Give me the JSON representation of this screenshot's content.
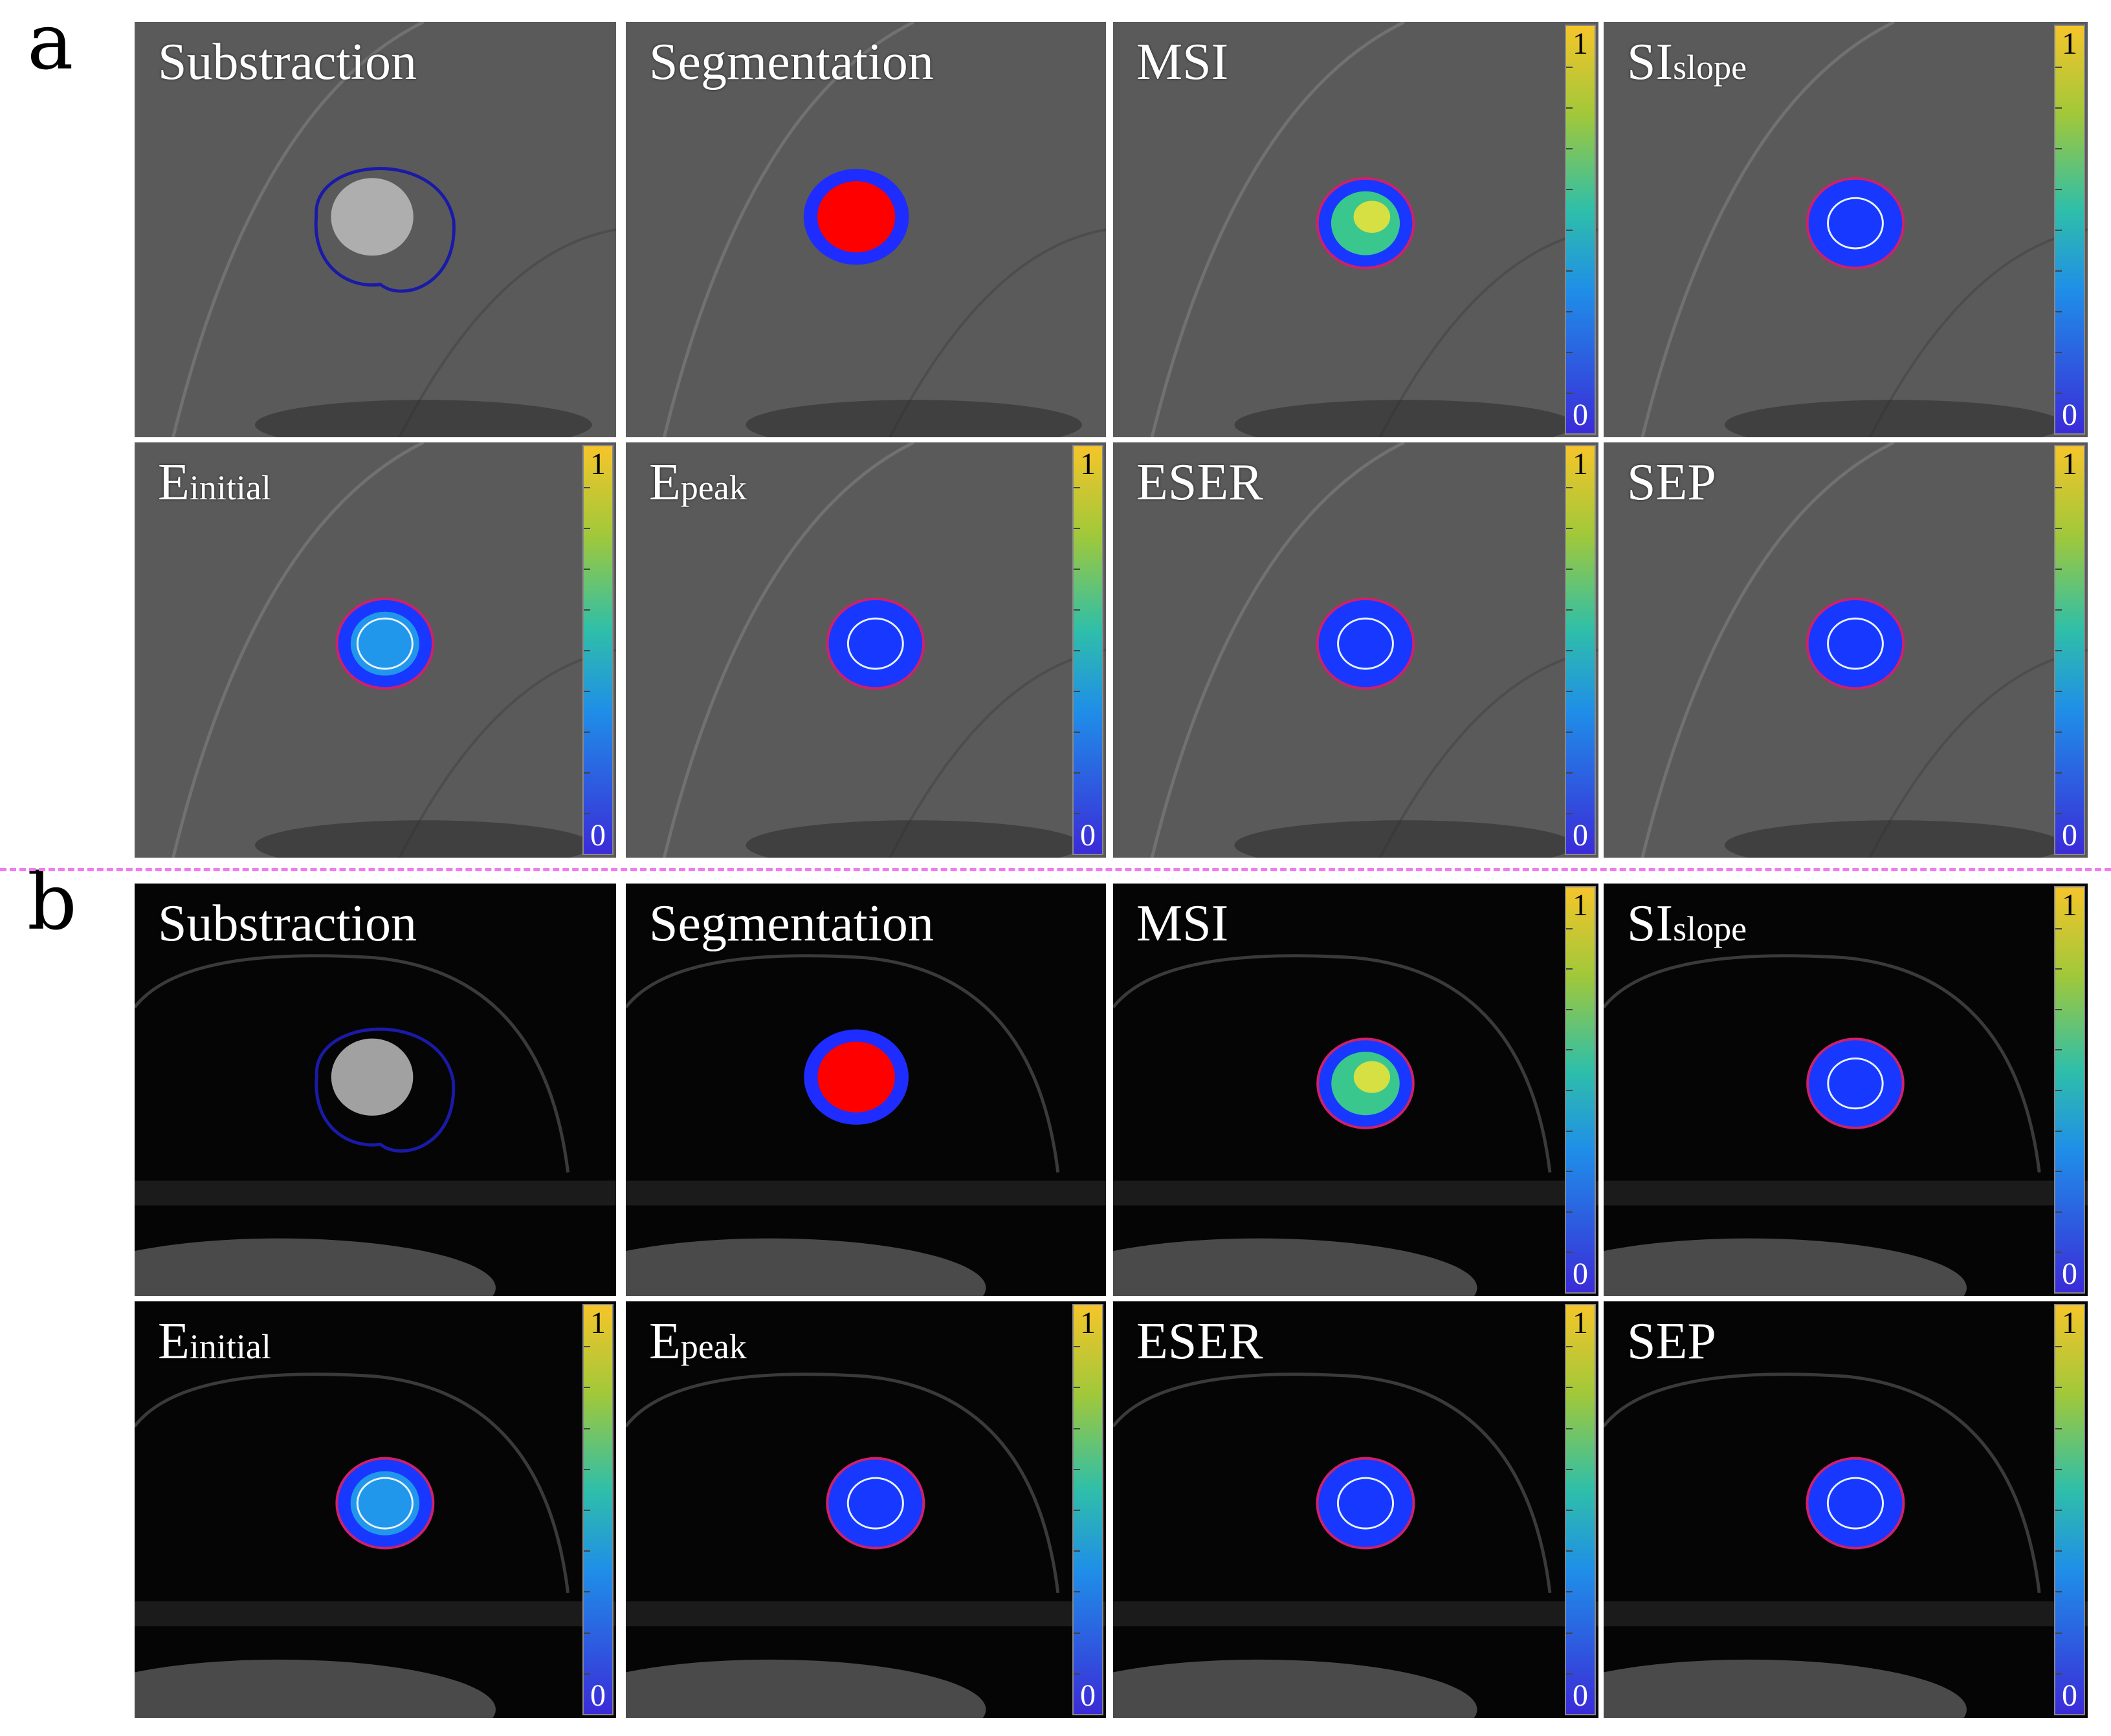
{
  "sections": [
    {
      "letter": "a",
      "panels": [
        {
          "title": "Substraction",
          "sub": "",
          "kind": "sub",
          "colorbar": false
        },
        {
          "title": "Segmentation",
          "sub": "",
          "kind": "seg",
          "colorbar": false
        },
        {
          "title": "MSI",
          "sub": "",
          "kind": "map-hot",
          "colorbar": true
        },
        {
          "title": "SI",
          "sub": "slope",
          "kind": "map-blue",
          "colorbar": true
        },
        {
          "title": "E",
          "sub": "initial",
          "kind": "map-cyan",
          "colorbar": true
        },
        {
          "title": "E",
          "sub": "peak",
          "kind": "map-blue",
          "colorbar": true
        },
        {
          "title": "ESER",
          "sub": "",
          "kind": "map-blue",
          "colorbar": true
        },
        {
          "title": "SEP",
          "sub": "",
          "kind": "map-blue",
          "colorbar": true
        }
      ]
    },
    {
      "letter": "b",
      "panels": [
        {
          "title": "Substraction",
          "sub": "",
          "kind": "sub",
          "colorbar": false
        },
        {
          "title": "Segmentation",
          "sub": "",
          "kind": "seg",
          "colorbar": false
        },
        {
          "title": "MSI",
          "sub": "",
          "kind": "map-hot",
          "colorbar": true
        },
        {
          "title": "SI",
          "sub": "slope",
          "kind": "map-blue",
          "colorbar": true
        },
        {
          "title": "E",
          "sub": "initial",
          "kind": "map-cyan",
          "colorbar": true
        },
        {
          "title": "E",
          "sub": "peak",
          "kind": "map-blue",
          "colorbar": true
        },
        {
          "title": "ESER",
          "sub": "",
          "kind": "map-blue",
          "colorbar": true
        },
        {
          "title": "SEP",
          "sub": "",
          "kind": "map-blue",
          "colorbar": true
        }
      ]
    }
  ],
  "colorbar": {
    "max_label": "1",
    "min_label": "0"
  },
  "colors": {
    "scan_a": "#5a5a5a",
    "scan_b": "#050505",
    "contour": "#1a1aa8",
    "seg_inner": "#ff0000",
    "seg_outer": "#1f2cff",
    "map_blue": "#1838ff",
    "divider": "#f07cf0"
  }
}
